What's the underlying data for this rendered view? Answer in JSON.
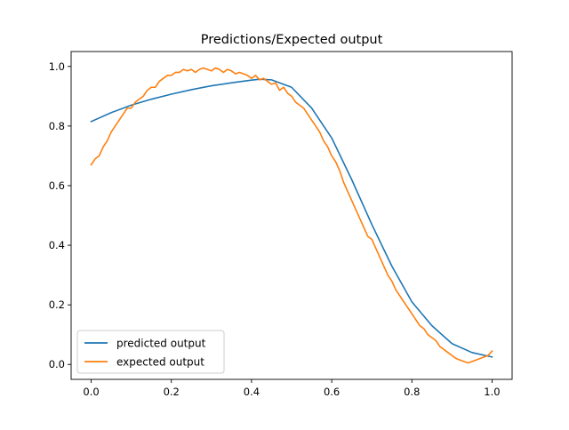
{
  "chart_data": {
    "type": "line",
    "title": "Predictions/Expected output",
    "xlabel": "",
    "ylabel": "",
    "xlim": [
      -0.05,
      1.05
    ],
    "ylim": [
      -0.05,
      1.05
    ],
    "xticks": [
      0.0,
      0.2,
      0.4,
      0.6,
      0.8,
      1.0
    ],
    "xtick_labels": [
      "0.0",
      "0.2",
      "0.4",
      "0.6",
      "0.8",
      "1.0"
    ],
    "yticks": [
      0.0,
      0.2,
      0.4,
      0.6,
      0.8,
      1.0
    ],
    "ytick_labels": [
      "0.0",
      "0.2",
      "0.4",
      "0.6",
      "0.8",
      "1.0"
    ],
    "grid": false,
    "legend_position": "lower-left",
    "series": [
      {
        "name": "predicted output",
        "color": "#1f77b4",
        "x": [
          0.0,
          0.05,
          0.1,
          0.15,
          0.2,
          0.25,
          0.3,
          0.35,
          0.4,
          0.42,
          0.45,
          0.5,
          0.55,
          0.6,
          0.65,
          0.7,
          0.75,
          0.8,
          0.85,
          0.9,
          0.95,
          1.0
        ],
        "y": [
          0.815,
          0.845,
          0.87,
          0.89,
          0.907,
          0.922,
          0.935,
          0.945,
          0.954,
          0.957,
          0.955,
          0.93,
          0.86,
          0.76,
          0.62,
          0.47,
          0.33,
          0.21,
          0.13,
          0.07,
          0.04,
          0.025
        ]
      },
      {
        "name": "expected output",
        "color": "#ff7f0e",
        "x": [
          0.0,
          0.01,
          0.02,
          0.03,
          0.04,
          0.05,
          0.06,
          0.07,
          0.08,
          0.09,
          0.1,
          0.11,
          0.12,
          0.13,
          0.14,
          0.15,
          0.16,
          0.17,
          0.18,
          0.19,
          0.2,
          0.21,
          0.22,
          0.23,
          0.24,
          0.25,
          0.26,
          0.27,
          0.28,
          0.29,
          0.3,
          0.31,
          0.32,
          0.33,
          0.34,
          0.35,
          0.36,
          0.37,
          0.38,
          0.39,
          0.4,
          0.41,
          0.42,
          0.43,
          0.44,
          0.45,
          0.46,
          0.47,
          0.48,
          0.49,
          0.5,
          0.51,
          0.52,
          0.53,
          0.54,
          0.55,
          0.56,
          0.57,
          0.58,
          0.59,
          0.6,
          0.61,
          0.62,
          0.63,
          0.64,
          0.65,
          0.66,
          0.67,
          0.68,
          0.69,
          0.7,
          0.71,
          0.72,
          0.73,
          0.74,
          0.75,
          0.76,
          0.77,
          0.78,
          0.79,
          0.8,
          0.81,
          0.82,
          0.83,
          0.84,
          0.85,
          0.86,
          0.87,
          0.88,
          0.89,
          0.9,
          0.91,
          0.92,
          0.93,
          0.94,
          0.95,
          0.96,
          0.97,
          0.98,
          0.99,
          1.0
        ],
        "y": [
          0.67,
          0.69,
          0.7,
          0.73,
          0.75,
          0.78,
          0.8,
          0.82,
          0.84,
          0.86,
          0.86,
          0.88,
          0.89,
          0.9,
          0.92,
          0.93,
          0.93,
          0.95,
          0.96,
          0.97,
          0.97,
          0.98,
          0.98,
          0.99,
          0.985,
          0.99,
          0.98,
          0.99,
          0.995,
          0.99,
          0.985,
          0.995,
          0.99,
          0.98,
          0.99,
          0.985,
          0.975,
          0.98,
          0.975,
          0.97,
          0.96,
          0.97,
          0.955,
          0.96,
          0.95,
          0.94,
          0.945,
          0.92,
          0.93,
          0.91,
          0.9,
          0.88,
          0.87,
          0.86,
          0.84,
          0.82,
          0.8,
          0.78,
          0.75,
          0.73,
          0.7,
          0.68,
          0.65,
          0.61,
          0.58,
          0.55,
          0.52,
          0.49,
          0.46,
          0.43,
          0.42,
          0.39,
          0.36,
          0.33,
          0.3,
          0.28,
          0.25,
          0.23,
          0.21,
          0.19,
          0.17,
          0.15,
          0.13,
          0.12,
          0.1,
          0.09,
          0.08,
          0.06,
          0.05,
          0.04,
          0.03,
          0.02,
          0.015,
          0.01,
          0.005,
          0.01,
          0.015,
          0.02,
          0.025,
          0.03,
          0.045
        ]
      }
    ]
  }
}
